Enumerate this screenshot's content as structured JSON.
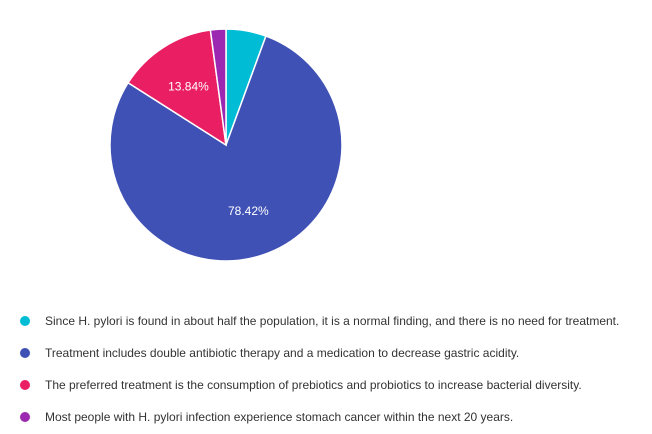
{
  "chart_data": {
    "type": "pie",
    "slices": [
      {
        "label": "Since H. pylori is found in about half the population, it is a normal finding, and there is no need for treatment.",
        "value": 5.59,
        "color": "#00bcd4",
        "data_label": ""
      },
      {
        "label": "Treatment includes double antibiotic therapy and a medication to decrease gastric acidity.",
        "value": 78.42,
        "color": "#3f51b5",
        "data_label": "78.42%"
      },
      {
        "label": "The preferred treatment is the consumption of prebiotics and probiotics to increase bacterial diversity.",
        "value": 13.84,
        "color": "#e91e63",
        "data_label": "13.84%"
      },
      {
        "label": "Most people with H. pylori infection experience stomach cancer within the next 20 years.",
        "value": 2.15,
        "color": "#9c27b0",
        "data_label": ""
      }
    ],
    "legend_position": "bottom"
  },
  "legend": {
    "items": [
      {
        "text": "Since H. pylori is found in about half the population, it is a normal finding, and there is no need for treatment.",
        "color": "#00bcd4"
      },
      {
        "text": "Treatment includes double antibiotic therapy and a medication to decrease gastric acidity.",
        "color": "#3f51b5"
      },
      {
        "text": "The preferred treatment is the consumption of prebiotics and probiotics to increase bacterial diversity.",
        "color": "#e91e63"
      },
      {
        "text": "Most people with H. pylori infection experience stomach cancer within the next 20 years.",
        "color": "#9c27b0"
      }
    ]
  }
}
